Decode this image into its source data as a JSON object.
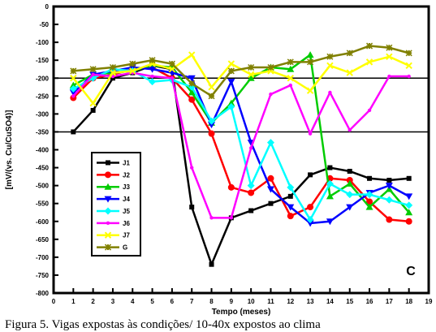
{
  "chart_data": {
    "type": "line",
    "xlabel": "Tempo (meses)",
    "ylabel": "[mV/(vs. Cu/CuSO4)]",
    "panel_label": "C",
    "x": [
      0,
      1,
      2,
      3,
      4,
      5,
      6,
      7,
      8,
      9,
      10,
      11,
      12,
      13,
      14,
      15,
      16,
      17,
      18
    ],
    "xlim": [
      0,
      19
    ],
    "ylim": [
      -800,
      0
    ],
    "y_ticks": [
      0,
      -50,
      -100,
      -150,
      -200,
      -250,
      -300,
      -350,
      -400,
      -450,
      -500,
      -550,
      -600,
      -650,
      -700,
      -750,
      -800
    ],
    "x_ticks": [
      0,
      1,
      2,
      3,
      4,
      5,
      6,
      7,
      8,
      9,
      10,
      11,
      12,
      13,
      14,
      15,
      16,
      17,
      18,
      19
    ],
    "reference_lines": [
      -200,
      -350
    ],
    "grid": false,
    "legend_position": "left-middle",
    "series": [
      {
        "name": "J1",
        "color": "#000000",
        "marker": "square",
        "points": [
          [
            1,
            -350
          ],
          [
            2,
            -290
          ],
          [
            3,
            -200
          ],
          [
            4,
            -185
          ],
          [
            5,
            -165
          ],
          [
            6,
            -175
          ],
          [
            7,
            -560
          ],
          [
            8,
            -720
          ],
          [
            9,
            -590
          ],
          [
            10,
            -570
          ],
          [
            11,
            -550
          ],
          [
            12,
            -530
          ],
          [
            13,
            -470
          ],
          [
            14,
            -450
          ],
          [
            15,
            -460
          ],
          [
            16,
            -480
          ],
          [
            17,
            -485
          ],
          [
            18,
            -480
          ]
        ]
      },
      {
        "name": "J2",
        "color": "#ff0000",
        "marker": "circle",
        "points": [
          [
            1,
            -255
          ],
          [
            2,
            -200
          ],
          [
            3,
            -190
          ],
          [
            4,
            -175
          ],
          [
            5,
            -170
          ],
          [
            6,
            -200
          ],
          [
            7,
            -260
          ],
          [
            8,
            -355
          ],
          [
            9,
            -505
          ],
          [
            10,
            -520
          ],
          [
            11,
            -480
          ],
          [
            12,
            -585
          ],
          [
            13,
            -560
          ],
          [
            14,
            -480
          ],
          [
            15,
            -485
          ],
          [
            16,
            -545
          ],
          [
            17,
            -595
          ],
          [
            18,
            -600
          ]
        ]
      },
      {
        "name": "J3",
        "color": "#00cc00",
        "marker": "triangle-up",
        "points": [
          [
            1,
            -220
          ],
          [
            2,
            -190
          ],
          [
            3,
            -185
          ],
          [
            4,
            -180
          ],
          [
            5,
            -165
          ],
          [
            6,
            -170
          ],
          [
            7,
            -240
          ],
          [
            8,
            -325
          ],
          [
            9,
            -270
          ],
          [
            10,
            -200
          ],
          [
            11,
            -170
          ],
          [
            12,
            -175
          ],
          [
            13,
            -135
          ],
          [
            14,
            -530
          ],
          [
            15,
            -495
          ],
          [
            16,
            -560
          ],
          [
            17,
            -510
          ],
          [
            18,
            -575
          ]
        ]
      },
      {
        "name": "J4",
        "color": "#0000ff",
        "marker": "triangle-down",
        "points": [
          [
            1,
            -240
          ],
          [
            2,
            -190
          ],
          [
            3,
            -180
          ],
          [
            4,
            -170
          ],
          [
            5,
            -175
          ],
          [
            6,
            -185
          ],
          [
            7,
            -200
          ],
          [
            8,
            -330
          ],
          [
            9,
            -210
          ],
          [
            10,
            -380
          ],
          [
            11,
            -510
          ],
          [
            12,
            -560
          ],
          [
            13,
            -605
          ],
          [
            14,
            -600
          ],
          [
            15,
            -560
          ],
          [
            16,
            -520
          ],
          [
            17,
            -500
          ],
          [
            18,
            -530
          ]
        ]
      },
      {
        "name": "J5",
        "color": "#00ffff",
        "marker": "diamond",
        "points": [
          [
            1,
            -230
          ],
          [
            2,
            -200
          ],
          [
            3,
            -175
          ],
          [
            4,
            -180
          ],
          [
            5,
            -210
          ],
          [
            6,
            -205
          ],
          [
            7,
            -225
          ],
          [
            8,
            -320
          ],
          [
            9,
            -280
          ],
          [
            10,
            -500
          ],
          [
            11,
            -380
          ],
          [
            12,
            -505
          ],
          [
            13,
            -595
          ],
          [
            14,
            -495
          ],
          [
            15,
            -525
          ],
          [
            16,
            -525
          ],
          [
            17,
            -540
          ],
          [
            18,
            -555
          ]
        ]
      },
      {
        "name": "J6",
        "color": "#ff00ff",
        "marker": "dot",
        "points": [
          [
            1,
            -250
          ],
          [
            2,
            -190
          ],
          [
            3,
            -195
          ],
          [
            4,
            -185
          ],
          [
            5,
            -195
          ],
          [
            6,
            -200
          ],
          [
            7,
            -450
          ],
          [
            8,
            -590
          ],
          [
            9,
            -590
          ],
          [
            10,
            -395
          ],
          [
            11,
            -245
          ],
          [
            12,
            -220
          ],
          [
            13,
            -355
          ],
          [
            14,
            -240
          ],
          [
            15,
            -345
          ],
          [
            16,
            -290
          ],
          [
            17,
            -195
          ],
          [
            18,
            -195
          ]
        ]
      },
      {
        "name": "J7",
        "color": "#ffff00",
        "marker": "x",
        "points": [
          [
            1,
            -200
          ],
          [
            2,
            -270
          ],
          [
            3,
            -185
          ],
          [
            4,
            -180
          ],
          [
            5,
            -160
          ],
          [
            6,
            -175
          ],
          [
            7,
            -135
          ],
          [
            8,
            -225
          ],
          [
            9,
            -160
          ],
          [
            10,
            -190
          ],
          [
            11,
            -180
          ],
          [
            12,
            -200
          ],
          [
            13,
            -235
          ],
          [
            14,
            -165
          ],
          [
            15,
            -185
          ],
          [
            16,
            -155
          ],
          [
            17,
            -140
          ],
          [
            18,
            -165
          ]
        ]
      },
      {
        "name": "G",
        "color": "#808000",
        "marker": "star",
        "points": [
          [
            1,
            -180
          ],
          [
            2,
            -175
          ],
          [
            3,
            -170
          ],
          [
            4,
            -160
          ],
          [
            5,
            -150
          ],
          [
            6,
            -160
          ],
          [
            7,
            -215
          ],
          [
            8,
            -250
          ],
          [
            9,
            -180
          ],
          [
            10,
            -170
          ],
          [
            11,
            -170
          ],
          [
            12,
            -155
          ],
          [
            13,
            -155
          ],
          [
            14,
            -140
          ],
          [
            15,
            -130
          ],
          [
            16,
            -110
          ],
          [
            17,
            -115
          ],
          [
            18,
            -130
          ]
        ]
      }
    ]
  },
  "caption": "Figura 5. Vigas expostas às condições/ 10-40x expostos ao clima"
}
